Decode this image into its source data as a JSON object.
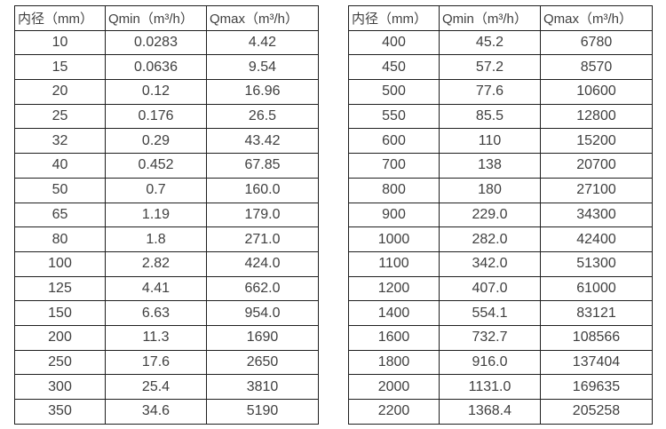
{
  "colors": {
    "background": "#ffffff",
    "border": "#1f1f1f",
    "text": "#3f3f3f"
  },
  "tables": [
    {
      "headers": [
        "内径（mm）",
        "Qmin（m³/h）",
        "Qmax（m³/h）"
      ],
      "rows": [
        [
          "10",
          "0.0283",
          "4.42"
        ],
        [
          "15",
          "0.0636",
          "9.54"
        ],
        [
          "20",
          "0.12",
          "16.96"
        ],
        [
          "25",
          "0.176",
          "26.5"
        ],
        [
          "32",
          "0.29",
          "43.42"
        ],
        [
          "40",
          "0.452",
          "67.85"
        ],
        [
          "50",
          "0.7",
          "160.0"
        ],
        [
          "65",
          "1.19",
          "179.0"
        ],
        [
          "80",
          "1.8",
          "271.0"
        ],
        [
          "100",
          "2.82",
          "424.0"
        ],
        [
          "125",
          "4.41",
          "662.0"
        ],
        [
          "150",
          "6.63",
          "954.0"
        ],
        [
          "200",
          "11.3",
          "1690"
        ],
        [
          "250",
          "17.6",
          "2650"
        ],
        [
          "300",
          "25.4",
          "3810"
        ],
        [
          "350",
          "34.6",
          "5190"
        ]
      ]
    },
    {
      "headers": [
        "内径（mm）",
        "Qmin（m³/h）",
        "Qmax（m³/h）"
      ],
      "rows": [
        [
          "400",
          "45.2",
          "6780"
        ],
        [
          "450",
          "57.2",
          "8570"
        ],
        [
          "500",
          "77.6",
          "10600"
        ],
        [
          "550",
          "85.5",
          "12800"
        ],
        [
          "600",
          "110",
          "15200"
        ],
        [
          "700",
          "138",
          "20700"
        ],
        [
          "800",
          "180",
          "27100"
        ],
        [
          "900",
          "229.0",
          "34300"
        ],
        [
          "1000",
          "282.0",
          "42400"
        ],
        [
          "1100",
          "342.0",
          "51300"
        ],
        [
          "1200",
          "407.0",
          "61000"
        ],
        [
          "1400",
          "554.1",
          "83121"
        ],
        [
          "1600",
          "732.7",
          "108566"
        ],
        [
          "1800",
          "916.0",
          "137404"
        ],
        [
          "2000",
          "1131.0",
          "169635"
        ],
        [
          "2200",
          "1368.4",
          "205258"
        ]
      ]
    }
  ]
}
